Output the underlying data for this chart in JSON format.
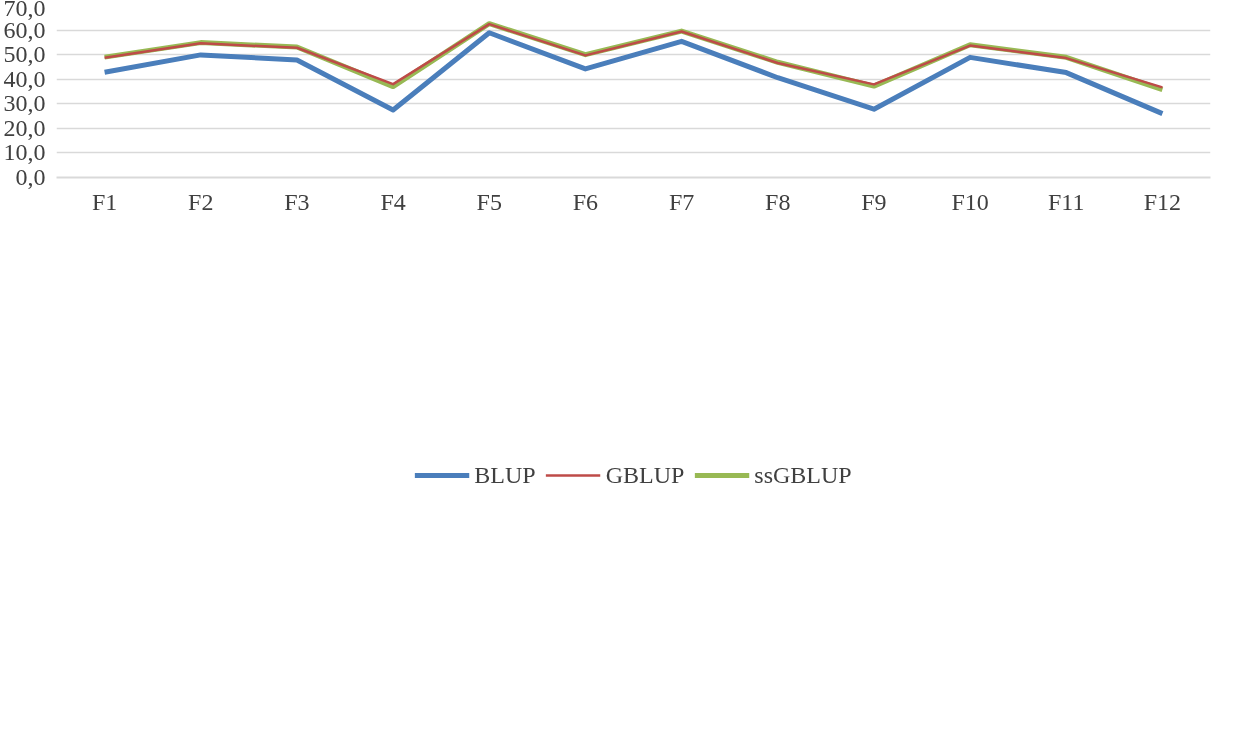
{
  "chart_data": {
    "type": "line",
    "categories": [
      "F1",
      "F2",
      "F3",
      "F4",
      "F5",
      "F6",
      "F7",
      "F8",
      "F9",
      "F10",
      "F11",
      "F12"
    ],
    "series": [
      {
        "name": "BLUP",
        "color": "#4a7ebb",
        "values": [
          42.8,
          49.9,
          47.8,
          27.5,
          58.9,
          44.2,
          55.4,
          40.6,
          27.8,
          48.9,
          42.7,
          26.0
        ]
      },
      {
        "name": "GBLUP",
        "color": "#be4b48",
        "values": [
          48.7,
          54.6,
          52.8,
          38.0,
          62.4,
          49.7,
          59.4,
          46.6,
          37.9,
          53.7,
          48.6,
          36.7
        ]
      },
      {
        "name": "ssGBLUP",
        "color": "#98b954",
        "values": [
          49.0,
          54.9,
          53.1,
          37.0,
          62.6,
          50.0,
          59.6,
          46.9,
          37.2,
          54.0,
          48.9,
          35.8
        ]
      }
    ],
    "ylim": [
      0,
      70
    ],
    "yticks": [
      {
        "value": 0,
        "label": "0,0"
      },
      {
        "value": 10,
        "label": "10,0"
      },
      {
        "value": 20,
        "label": "20,0"
      },
      {
        "value": 30,
        "label": "30,0"
      },
      {
        "value": 40,
        "label": "40,0"
      },
      {
        "value": 50,
        "label": "50,0"
      },
      {
        "value": 60,
        "label": "60,0"
      },
      {
        "value": 70,
        "label": "70,0"
      }
    ],
    "grid": "y",
    "legend": "bottom",
    "marker": "none",
    "line_style": "solid"
  }
}
